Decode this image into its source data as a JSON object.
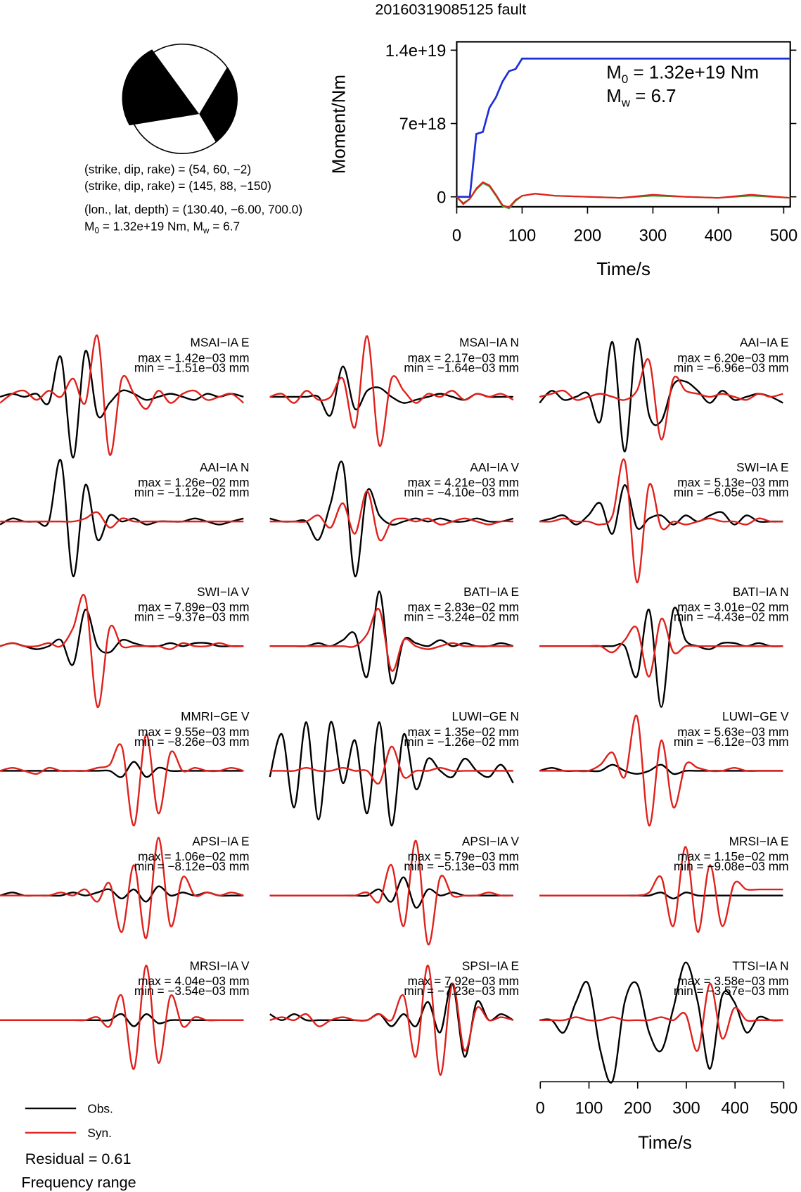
{
  "title": "20160319085125 fault",
  "mechanism": {
    "plane1": "(strike, dip, rake) = (54, 60, −2)",
    "plane2": "(strike, dip, rake) = (145, 88, −150)",
    "location": "(lon., lat, depth) = (130.40, −6.00, 700.0)",
    "moment": {
      "m0_sym": "M",
      "m0_sub": "0",
      "m0_text": " = 1.32e+19 Nm, ",
      "mw_sym": "M",
      "mw_sub": "w",
      "mw_text": " = 6.7"
    }
  },
  "chart_data": [
    {
      "type": "line",
      "xlabel": "Time/s",
      "ylabel": "Moment/Nm",
      "xlim": [
        0,
        510
      ],
      "ylim": [
        -9.5e+17,
        1.48e+19
      ],
      "xticks": [
        0,
        100,
        200,
        300,
        400,
        500
      ],
      "yticks": [
        0,
        {
          "value": 7e+18,
          "label": "7e+18"
        },
        {
          "value": 1.4e+19,
          "label": "1.4e+19"
        }
      ],
      "annotations": [
        {
          "sym": "M",
          "sub": "0",
          "text": " = 1.32e+19 Nm"
        },
        {
          "sym": "M",
          "sub": "w",
          "text": " = 6.7"
        }
      ],
      "x": [
        0,
        10,
        20,
        30,
        40,
        50,
        60,
        70,
        80,
        90,
        100,
        120,
        150,
        200,
        250,
        300,
        350,
        400,
        450,
        510
      ],
      "series": [
        {
          "color": "#1f2fd8",
          "values": [
            0,
            0,
            0,
            6e+18,
            6.2e+18,
            8.5e+18,
            9.5e+18,
            1.1e+19,
            1.2e+19,
            1.22e+19,
            1.32e+19,
            1.32e+19,
            1.32e+19,
            1.32e+19,
            1.32e+19,
            1.32e+19,
            1.32e+19,
            1.32e+19,
            1.32e+19,
            1.32e+19
          ]
        },
        {
          "color": "#2ea82e",
          "values": [
            0,
            -6e+17,
            -2e+17,
            7e+17,
            1.3e+18,
            1e+18,
            1e+17,
            -9e+17,
            -1.1e+18,
            -4e+17,
            1e+17,
            3e+17,
            1e+17,
            0,
            -1e+17,
            1e+17,
            0,
            -1e+17,
            1e+17,
            -1e+17
          ]
        },
        {
          "color": "#e0201c",
          "values": [
            0,
            -7e+17,
            -2e+17,
            8e+17,
            1.4e+18,
            1.1e+18,
            2e+17,
            -8e+17,
            -1e+18,
            -3e+17,
            1e+17,
            3e+17,
            1e+17,
            0,
            -1e+17,
            2e+17,
            0,
            -1e+17,
            2e+17,
            -1e+17
          ]
        }
      ]
    },
    {
      "type": "waveforms",
      "xlabel": "Time/s",
      "xlim": [
        0,
        515
      ],
      "xticks": [
        0,
        100,
        200,
        300,
        400,
        500
      ],
      "series": [
        {
          "name": "Obs.",
          "color": "#000000"
        },
        {
          "name": "Syn.",
          "color": "#e0201c"
        }
      ],
      "annotations": [
        "Residual = 0.61",
        "Frequency range"
      ],
      "x": [
        0,
        25,
        50,
        75,
        100,
        125,
        150,
        175,
        200,
        225,
        250,
        275,
        300,
        325,
        350,
        375,
        400,
        425,
        450,
        475,
        500
      ],
      "panels": [
        {
          "station": "MSAI−IA E",
          "max": "max = 1.42e−03 mm",
          "min": "min = −1.51e−03 mm",
          "obs": [
            0,
            0.05,
            0,
            0.05,
            -0.1,
            0.65,
            -1.0,
            0.75,
            -0.3,
            -0.1,
            0.1,
            0.05,
            -0.05,
            0,
            0.05,
            0,
            -0.05,
            0.05,
            0,
            0.05,
            0
          ],
          "syn": [
            -0.1,
            0.05,
            0.1,
            -0.05,
            0.1,
            0,
            0.3,
            -0.1,
            1.0,
            -0.95,
            0.3,
            0.05,
            -0.2,
            0.1,
            -0.1,
            0.05,
            0.1,
            -0.05,
            0,
            0.05,
            -0.1
          ]
        },
        {
          "station": "MSAI−IA N",
          "max": "max = 2.17e−03 mm",
          "min": "min = −1.64e−03 mm",
          "obs": [
            0,
            0,
            0,
            0,
            0,
            -0.3,
            0.5,
            -0.2,
            0.1,
            0.15,
            0,
            -0.1,
            -0.05,
            0,
            0.05,
            0,
            -0.05,
            0.05,
            0,
            0,
            0
          ],
          "syn": [
            0,
            0.05,
            -0.1,
            0.1,
            -0.05,
            0,
            0.3,
            -0.5,
            1.0,
            -0.8,
            0.3,
            0.1,
            -0.1,
            0.05,
            0,
            0.1,
            -0.05,
            0.05,
            0,
            0.05,
            -0.05
          ]
        },
        {
          "station": "AAI−IA E",
          "max": "max = 6.20e−03 mm",
          "min": "min = −6.96e−03 mm",
          "obs": [
            -0.1,
            0.1,
            -0.05,
            0,
            0.05,
            -0.4,
            0.9,
            -0.9,
            0.95,
            -0.3,
            -0.4,
            0.2,
            0.25,
            0.1,
            -0.1,
            0.1,
            -0.05,
            0,
            0.05,
            0,
            -0.1
          ],
          "syn": [
            0,
            0.05,
            0.1,
            -0.05,
            0,
            0.05,
            0,
            -0.05,
            0.1,
            0.6,
            -0.7,
            0.3,
            0.1,
            0.05,
            0,
            0.05,
            0,
            -0.05,
            0.05,
            0,
            0.05
          ]
        },
        {
          "station": "AAI−IA N",
          "max": "max = 1.26e−02 mm",
          "min": "min = −1.12e−02 mm",
          "obs": [
            -0.05,
            0.05,
            0,
            0,
            0,
            1.0,
            -0.9,
            0.6,
            -0.3,
            0.1,
            0,
            0.05,
            -0.05,
            0,
            0,
            0,
            0.05,
            0,
            -0.05,
            0,
            0.05
          ],
          "syn": [
            0,
            0,
            0,
            0,
            0,
            0,
            0,
            0.05,
            0.15,
            -0.1,
            0.05,
            0,
            0,
            0,
            0,
            0,
            0,
            0,
            0,
            0,
            0
          ]
        },
        {
          "station": "AAI−IA V",
          "max": "max = 4.21e−03 mm",
          "min": "min = −4.10e−03 mm",
          "obs": [
            0.05,
            0,
            0,
            0,
            -0.3,
            0.3,
            0.95,
            -0.9,
            0.5,
            0.1,
            -0.05,
            0,
            0.05,
            0,
            0.05,
            0,
            0,
            0.05,
            0,
            0,
            0.05
          ],
          "syn": [
            0,
            0,
            0,
            0,
            0.1,
            -0.1,
            0.3,
            -0.2,
            0.5,
            -0.3,
            0,
            0.05,
            0,
            0.05,
            -0.05,
            0,
            0.05,
            0,
            -0.05,
            0,
            0
          ]
        },
        {
          "station": "SWI−IA E",
          "max": "max = 5.13e−03 mm",
          "min": "min = −6.05e−03 mm",
          "obs": [
            0,
            0.05,
            0.1,
            -0.05,
            0.1,
            0.3,
            -0.2,
            0.6,
            -0.1,
            0.05,
            0.1,
            -0.05,
            0.1,
            0,
            0.1,
            0.15,
            -0.05,
            0.1,
            0,
            0,
            0
          ],
          "syn": [
            0,
            0,
            0.05,
            0,
            0,
            -0.05,
            0.1,
            1.0,
            -1.0,
            0.6,
            -0.1,
            0,
            -0.05,
            0,
            0.05,
            0,
            0,
            -0.05,
            0.05,
            0,
            0
          ]
        },
        {
          "station": "SWI−IA V",
          "max": "max = 7.89e−03 mm",
          "min": "min = −9.37e−03 mm",
          "obs": [
            0,
            0.05,
            0,
            -0.05,
            0,
            0.1,
            -0.3,
            0.6,
            0,
            -0.1,
            0.1,
            0.05,
            0,
            0,
            0.05,
            0,
            0.05,
            0.05,
            0,
            0,
            0
          ],
          "syn": [
            0,
            0.05,
            0,
            0,
            0.05,
            0,
            0.3,
            0.8,
            -1.0,
            0.3,
            0,
            0,
            0,
            0,
            -0.05,
            0.05,
            0,
            0,
            0.05,
            0,
            0
          ]
        },
        {
          "station": "BATI−IA E",
          "max": "max = 2.83e−02 mm",
          "min": "min = −3.24e−02 mm",
          "obs": [
            0,
            0,
            0,
            0,
            0.05,
            0,
            0.1,
            0.2,
            -0.5,
            0.9,
            -0.6,
            0.1,
            0.05,
            0,
            0.1,
            0,
            0.05,
            0,
            0,
            0.05,
            0
          ],
          "syn": [
            0,
            0,
            0,
            0,
            0,
            0,
            0,
            0,
            0.2,
            0.6,
            -0.4,
            0.1,
            0,
            -0.05,
            0,
            0.05,
            0,
            0,
            0,
            0,
            0
          ]
        },
        {
          "station": "BATI−IA N",
          "max": "max = 3.01e−02 mm",
          "min": "min = −4.43e−02 mm",
          "obs": [
            0,
            0,
            0,
            0,
            0,
            0,
            0,
            0,
            -0.5,
            0.6,
            -1.0,
            0.6,
            0.1,
            0,
            -0.05,
            0.05,
            0.05,
            0,
            0.05,
            0,
            0
          ],
          "syn": [
            0,
            0,
            0,
            0,
            0,
            0,
            -0.1,
            0.1,
            0.3,
            -0.5,
            0.45,
            -0.1,
            0,
            0,
            0,
            0,
            0,
            0,
            0,
            0,
            0
          ]
        },
        {
          "station": "MMRI−GE V",
          "max": "max = 9.55e−03 mm",
          "min": "min = −8.26e−03 mm",
          "obs": [
            0,
            0,
            0,
            0,
            0,
            0,
            0,
            0,
            0,
            0,
            -0.1,
            0.15,
            -0.1,
            0.05,
            0,
            0,
            0,
            0,
            0,
            0,
            0
          ],
          "syn": [
            0,
            0.05,
            0,
            -0.05,
            0.05,
            0,
            0,
            0,
            0.05,
            0.1,
            0.4,
            -0.9,
            0.6,
            -0.7,
            0.3,
            0,
            0.05,
            0,
            0,
            0.05,
            0
          ]
        },
        {
          "station": "LUWI−GE N",
          "max": "max = 1.35e−02 mm",
          "min": "min = −1.26e−02 mm",
          "obs": [
            -0.1,
            0.6,
            -0.6,
            0.8,
            -0.8,
            0.8,
            -0.2,
            0.5,
            -0.7,
            0.8,
            -0.9,
            0.6,
            -0.3,
            0.2,
            0,
            -0.1,
            0.2,
            0,
            -0.1,
            0.1,
            -0.2
          ],
          "syn": [
            0,
            0,
            0,
            0.05,
            0,
            0,
            0.05,
            0,
            0,
            -0.2,
            0.4,
            -0.1,
            0,
            0,
            0.05,
            0,
            0,
            0,
            0,
            0,
            0
          ]
        },
        {
          "station": "LUWI−GE V",
          "max": "max = 5.63e−03 mm",
          "min": "min = −6.12e−03 mm",
          "obs": [
            0,
            0.05,
            0,
            0,
            0,
            0,
            0.1,
            0,
            -0.05,
            0,
            0.1,
            -0.05,
            0,
            0,
            0,
            0,
            0,
            0,
            0,
            0,
            0
          ],
          "syn": [
            0,
            0,
            0,
            0,
            0,
            0.1,
            0.3,
            -0.1,
            0.9,
            -0.9,
            0.5,
            -0.6,
            0.1,
            0.05,
            0,
            0,
            0.05,
            0,
            0,
            0,
            0
          ]
        },
        {
          "station": "APSI−IA E",
          "max": "max = 1.06e−02 mm",
          "min": "min = −8.12e−03 mm",
          "obs": [
            0,
            0.05,
            0,
            0,
            0,
            0,
            0.05,
            0,
            0.05,
            0.1,
            -0.05,
            0.1,
            -0.1,
            0.15,
            0,
            0.05,
            0,
            0.05,
            0,
            0,
            0
          ],
          "syn": [
            0,
            0,
            0,
            0,
            0,
            0.05,
            0,
            0.1,
            -0.1,
            0.2,
            -0.6,
            0.5,
            -0.7,
            0.95,
            -0.5,
            0.3,
            0,
            0.05,
            0,
            0.05,
            0
          ]
        },
        {
          "station": "APSI−IA V",
          "max": "max = 5.79e−03 mm",
          "min": "min = −5.13e−03 mm",
          "obs": [
            0,
            0,
            0,
            0,
            0,
            0,
            0,
            0,
            0,
            0.1,
            -0.1,
            0.3,
            -0.2,
            0.1,
            0,
            0.05,
            0,
            0,
            0,
            0,
            0
          ],
          "syn": [
            0,
            0,
            0,
            0,
            0,
            0,
            0,
            0,
            0.05,
            -0.1,
            0.5,
            -0.5,
            0.9,
            -0.8,
            0.3,
            0,
            0,
            0,
            0.05,
            0,
            0
          ]
        },
        {
          "station": "MRSI−IA E",
          "max": "max = 1.15e−02 mm",
          "min": "min = −9.08e−03 mm",
          "obs": [
            0,
            0,
            0,
            0,
            0,
            0,
            0,
            0,
            0,
            0,
            0.05,
            -0.05,
            0.05,
            0,
            0,
            0,
            0,
            0,
            0,
            0,
            0
          ],
          "syn": [
            0,
            0,
            0,
            0,
            0,
            0,
            0,
            0,
            0,
            0.05,
            0.3,
            -0.5,
            0.8,
            -0.6,
            0.5,
            -0.5,
            0.2,
            0.1,
            0.1,
            0.1,
            0.1
          ]
        },
        {
          "station": "MRSI−IA V",
          "max": "max = 4.04e−03 mm",
          "min": "min = −3.54e−03 mm",
          "obs": [
            0,
            0,
            0,
            0,
            0,
            0,
            0,
            0,
            0,
            0,
            0.1,
            -0.1,
            0.1,
            -0.05,
            0,
            0,
            0,
            0,
            0,
            0,
            0
          ],
          "syn": [
            0,
            0,
            0,
            0,
            0,
            0,
            0,
            0,
            0.05,
            -0.1,
            0.4,
            -0.8,
            0.9,
            -0.7,
            0.4,
            -0.1,
            0.05,
            0,
            0,
            0,
            0
          ]
        },
        {
          "station": "SPSI−IA E",
          "max": "max = 7.92e−03 mm",
          "min": "min = −7.23e−03 mm",
          "obs": [
            0.1,
            0,
            0.1,
            0,
            0,
            0,
            0,
            0,
            0,
            0.1,
            -0.1,
            0.1,
            -0.1,
            0.3,
            -0.2,
            0.6,
            -0.6,
            0.3,
            0,
            0.1,
            0
          ],
          "syn": [
            0,
            0.05,
            0,
            0.1,
            -0.1,
            0,
            0.05,
            0,
            0,
            0.1,
            0,
            0.4,
            -0.6,
            0.9,
            -0.9,
            0.6,
            -0.5,
            0.2,
            0,
            0.05,
            0
          ]
        },
        {
          "station": "TTSI−IA N",
          "max": "max = 3.58e−03 mm",
          "min": "min = −3.57e−03 mm",
          "obs": [
            0,
            0,
            -0.2,
            0.3,
            0.6,
            -0.5,
            -1.0,
            0.3,
            0.6,
            -0.2,
            -0.5,
            0.2,
            0.95,
            0.3,
            -0.8,
            0.4,
            0.3,
            -0.2,
            0.05,
            0,
            0
          ],
          "syn": [
            0,
            0,
            0,
            0.05,
            0,
            0,
            0.05,
            0,
            0,
            0,
            0.05,
            0,
            0.1,
            -0.5,
            0.6,
            -0.3,
            0.2,
            0,
            0,
            0,
            0
          ]
        }
      ]
    }
  ]
}
